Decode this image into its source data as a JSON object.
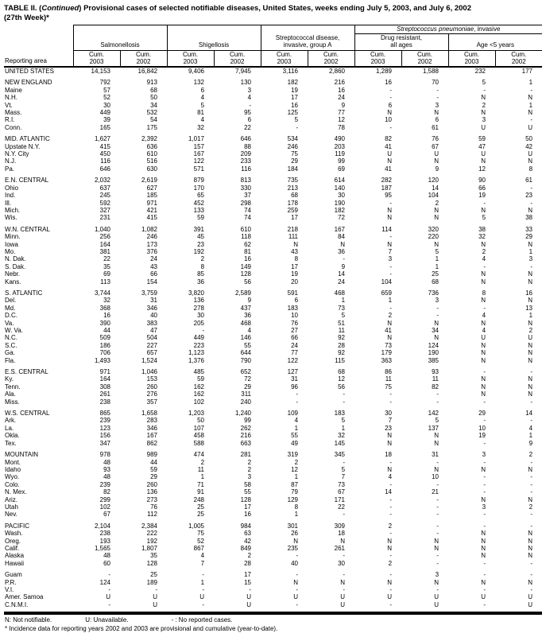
{
  "title": {
    "part1": "TABLE II. (",
    "continued": "Continued",
    "part2": ") Provisional cases of selected notifiable diseases, United States, weeks ending July 5, 2003, and July 6, 2002",
    "line2": "(27th Week)*"
  },
  "header": {
    "reporting_area": "Reporting area",
    "spanner_italic": "Streptococcus pneumoniae",
    "spanner_rest": ", invasive",
    "groups": [
      "Salmonellosis",
      "Shigellosis",
      "Streptococcal disease,\ninvasive, group A",
      "Drug resistant,\nall ages",
      "Age <5 years"
    ],
    "cum": "Cum.",
    "years": [
      "2003",
      "2002"
    ]
  },
  "body": {
    "groups": [
      {
        "rows": [
          [
            "UNITED STATES",
            "14,153",
            "16,842",
            "9,406",
            "7,945",
            "3,116",
            "2,860",
            "1,289",
            "1,588",
            "232",
            "177"
          ]
        ]
      },
      {
        "rows": [
          [
            "NEW ENGLAND",
            "792",
            "913",
            "132",
            "130",
            "182",
            "216",
            "16",
            "70",
            "5",
            "1"
          ],
          [
            "Maine",
            "57",
            "68",
            "6",
            "3",
            "19",
            "16",
            "-",
            "-",
            "-",
            "-"
          ],
          [
            "N.H.",
            "52",
            "50",
            "4",
            "4",
            "17",
            "24",
            "-",
            "-",
            "N",
            "N"
          ],
          [
            "Vt.",
            "30",
            "34",
            "5",
            "-",
            "16",
            "9",
            "6",
            "3",
            "2",
            "1"
          ],
          [
            "Mass.",
            "449",
            "532",
            "81",
            "95",
            "125",
            "77",
            "N",
            "N",
            "N",
            "N"
          ],
          [
            "R.I.",
            "39",
            "54",
            "4",
            "6",
            "5",
            "12",
            "10",
            "6",
            "3",
            "-"
          ],
          [
            "Conn.",
            "165",
            "175",
            "32",
            "22",
            "-",
            "78",
            "-",
            "61",
            "U",
            "U"
          ]
        ]
      },
      {
        "rows": [
          [
            "MID. ATLANTIC",
            "1,627",
            "2,392",
            "1,017",
            "646",
            "534",
            "490",
            "82",
            "76",
            "59",
            "50"
          ],
          [
            "Upstate N.Y.",
            "415",
            "636",
            "157",
            "88",
            "246",
            "203",
            "41",
            "67",
            "47",
            "42"
          ],
          [
            "N.Y. City",
            "450",
            "610",
            "167",
            "209",
            "75",
            "119",
            "U",
            "U",
            "U",
            "U"
          ],
          [
            "N.J.",
            "116",
            "516",
            "122",
            "233",
            "29",
            "99",
            "N",
            "N",
            "N",
            "N"
          ],
          [
            "Pa.",
            "646",
            "630",
            "571",
            "116",
            "184",
            "69",
            "41",
            "9",
            "12",
            "8"
          ]
        ]
      },
      {
        "rows": [
          [
            "E.N. CENTRAL",
            "2,032",
            "2,619",
            "879",
            "813",
            "735",
            "614",
            "282",
            "120",
            "90",
            "61"
          ],
          [
            "Ohio",
            "637",
            "627",
            "170",
            "330",
            "213",
            "140",
            "187",
            "14",
            "66",
            "-"
          ],
          [
            "Ind.",
            "245",
            "185",
            "65",
            "37",
            "68",
            "30",
            "95",
            "104",
            "19",
            "23"
          ],
          [
            "Ill.",
            "592",
            "971",
            "452",
            "298",
            "178",
            "190",
            "-",
            "2",
            "-",
            "-"
          ],
          [
            "Mich.",
            "327",
            "421",
            "133",
            "74",
            "259",
            "182",
            "N",
            "N",
            "N",
            "N"
          ],
          [
            "Wis.",
            "231",
            "415",
            "59",
            "74",
            "17",
            "72",
            "N",
            "N",
            "5",
            "38"
          ]
        ]
      },
      {
        "rows": [
          [
            "W.N. CENTRAL",
            "1,040",
            "1,082",
            "391",
            "610",
            "218",
            "167",
            "114",
            "320",
            "38",
            "33"
          ],
          [
            "Minn.",
            "256",
            "246",
            "45",
            "118",
            "111",
            "84",
            "-",
            "220",
            "32",
            "29"
          ],
          [
            "Iowa",
            "164",
            "173",
            "23",
            "62",
            "N",
            "N",
            "N",
            "N",
            "N",
            "N"
          ],
          [
            "Mo.",
            "381",
            "376",
            "192",
            "81",
            "43",
            "36",
            "7",
            "5",
            "2",
            "1"
          ],
          [
            "N. Dak.",
            "22",
            "24",
            "2",
            "16",
            "8",
            "-",
            "3",
            "1",
            "4",
            "3"
          ],
          [
            "S. Dak.",
            "35",
            "43",
            "8",
            "149",
            "17",
            "9",
            "-",
            "1",
            "-",
            "-"
          ],
          [
            "Nebr.",
            "69",
            "66",
            "85",
            "128",
            "19",
            "14",
            "-",
            "25",
            "N",
            "N"
          ],
          [
            "Kans.",
            "113",
            "154",
            "36",
            "56",
            "20",
            "24",
            "104",
            "68",
            "N",
            "N"
          ]
        ]
      },
      {
        "rows": [
          [
            "S. ATLANTIC",
            "3,744",
            "3,759",
            "3,820",
            "2,589",
            "591",
            "468",
            "659",
            "736",
            "8",
            "16"
          ],
          [
            "Del.",
            "32",
            "31",
            "136",
            "9",
            "6",
            "1",
            "1",
            "3",
            "N",
            "N"
          ],
          [
            "Md.",
            "368",
            "346",
            "278",
            "437",
            "183",
            "73",
            "-",
            "-",
            "-",
            "13"
          ],
          [
            "D.C.",
            "16",
            "40",
            "30",
            "36",
            "10",
            "5",
            "2",
            "-",
            "4",
            "1"
          ],
          [
            "Va.",
            "390",
            "383",
            "205",
            "468",
            "76",
            "51",
            "N",
            "N",
            "N",
            "N"
          ],
          [
            "W. Va.",
            "44",
            "47",
            "-",
            "4",
            "27",
            "11",
            "41",
            "34",
            "4",
            "2"
          ],
          [
            "N.C.",
            "509",
            "504",
            "449",
            "146",
            "66",
            "92",
            "N",
            "N",
            "U",
            "U"
          ],
          [
            "S.C.",
            "186",
            "227",
            "223",
            "55",
            "24",
            "28",
            "73",
            "124",
            "N",
            "N"
          ],
          [
            "Ga.",
            "706",
            "657",
            "1,123",
            "644",
            "77",
            "92",
            "179",
            "190",
            "N",
            "N"
          ],
          [
            "Fla.",
            "1,493",
            "1,524",
            "1,376",
            "790",
            "122",
            "115",
            "363",
            "385",
            "N",
            "N"
          ]
        ]
      },
      {
        "rows": [
          [
            "E.S. CENTRAL",
            "971",
            "1,046",
            "485",
            "652",
            "127",
            "68",
            "86",
            "93",
            "-",
            "-"
          ],
          [
            "Ky.",
            "164",
            "153",
            "59",
            "72",
            "31",
            "12",
            "11",
            "11",
            "N",
            "N"
          ],
          [
            "Tenn.",
            "308",
            "260",
            "162",
            "29",
            "96",
            "56",
            "75",
            "82",
            "N",
            "N"
          ],
          [
            "Ala.",
            "261",
            "276",
            "162",
            "311",
            "-",
            "-",
            "-",
            "-",
            "N",
            "N"
          ],
          [
            "Miss.",
            "238",
            "357",
            "102",
            "240",
            "-",
            "-",
            "-",
            "-",
            "-",
            "-"
          ]
        ]
      },
      {
        "rows": [
          [
            "W.S. CENTRAL",
            "865",
            "1,658",
            "1,203",
            "1,240",
            "109",
            "183",
            "30",
            "142",
            "29",
            "14"
          ],
          [
            "Ark.",
            "239",
            "283",
            "50",
            "99",
            "4",
            "5",
            "7",
            "5",
            "-",
            "-"
          ],
          [
            "La.",
            "123",
            "346",
            "107",
            "262",
            "1",
            "1",
            "23",
            "137",
            "10",
            "4"
          ],
          [
            "Okla.",
            "156",
            "167",
            "458",
            "216",
            "55",
            "32",
            "N",
            "N",
            "19",
            "1"
          ],
          [
            "Tex.",
            "347",
            "862",
            "588",
            "663",
            "49",
            "145",
            "N",
            "N",
            "-",
            "9"
          ]
        ]
      },
      {
        "rows": [
          [
            "MOUNTAIN",
            "978",
            "989",
            "474",
            "281",
            "319",
            "345",
            "18",
            "31",
            "3",
            "2"
          ],
          [
            "Mont.",
            "48",
            "44",
            "2",
            "2",
            "2",
            "-",
            "-",
            "-",
            "-",
            "-"
          ],
          [
            "Idaho",
            "93",
            "59",
            "11",
            "2",
            "12",
            "5",
            "N",
            "N",
            "N",
            "N"
          ],
          [
            "Wyo.",
            "48",
            "29",
            "1",
            "3",
            "1",
            "7",
            "4",
            "10",
            "-",
            "-"
          ],
          [
            "Colo.",
            "239",
            "260",
            "71",
            "58",
            "87",
            "73",
            "-",
            "-",
            "-",
            "-"
          ],
          [
            "N. Mex.",
            "82",
            "136",
            "91",
            "55",
            "79",
            "67",
            "14",
            "21",
            "-",
            "-"
          ],
          [
            "Ariz.",
            "299",
            "273",
            "248",
            "128",
            "129",
            "171",
            "-",
            "-",
            "N",
            "N"
          ],
          [
            "Utah",
            "102",
            "76",
            "25",
            "17",
            "8",
            "22",
            "-",
            "-",
            "3",
            "2"
          ],
          [
            "Nev.",
            "67",
            "112",
            "25",
            "16",
            "1",
            "-",
            "-",
            "-",
            "-",
            "-"
          ]
        ]
      },
      {
        "rows": [
          [
            "PACIFIC",
            "2,104",
            "2,384",
            "1,005",
            "984",
            "301",
            "309",
            "2",
            "-",
            "-",
            "-"
          ],
          [
            "Wash.",
            "238",
            "222",
            "75",
            "63",
            "26",
            "18",
            "-",
            "-",
            "N",
            "N"
          ],
          [
            "Oreg.",
            "193",
            "192",
            "52",
            "42",
            "N",
            "N",
            "N",
            "N",
            "N",
            "N"
          ],
          [
            "Calif.",
            "1,565",
            "1,807",
            "867",
            "849",
            "235",
            "261",
            "N",
            "N",
            "N",
            "N"
          ],
          [
            "Alaska",
            "48",
            "35",
            "4",
            "2",
            "-",
            "-",
            "-",
            "-",
            "N",
            "N"
          ],
          [
            "Hawaii",
            "60",
            "128",
            "7",
            "28",
            "40",
            "30",
            "2",
            "-",
            "-",
            "-"
          ]
        ]
      },
      {
        "rows": [
          [
            "Guam",
            "-",
            "25",
            "-",
            "17",
            "-",
            "-",
            "-",
            "3",
            "-",
            "-"
          ],
          [
            "P.R.",
            "124",
            "189",
            "1",
            "15",
            "N",
            "N",
            "N",
            "N",
            "N",
            "N"
          ],
          [
            "V.I.",
            "-",
            "-",
            "-",
            "-",
            "-",
            "-",
            "-",
            "-",
            "-",
            "-"
          ],
          [
            "Amer. Samoa",
            "U",
            "U",
            "U",
            "U",
            "U",
            "U",
            "U",
            "U",
            "U",
            "U"
          ],
          [
            "C.N.M.I.",
            "-",
            "U",
            "-",
            "U",
            "-",
            "U",
            "-",
            "U",
            "-",
            "U"
          ]
        ]
      }
    ]
  },
  "footnotes": {
    "legend_n": "N: Not notifiable.",
    "legend_u": "U: Unavailable.",
    "legend_dash": "- : No reported cases.",
    "note": "* Incidence data for reporting years 2002 and 2003 are provisional and cumulative (year-to-date)."
  }
}
